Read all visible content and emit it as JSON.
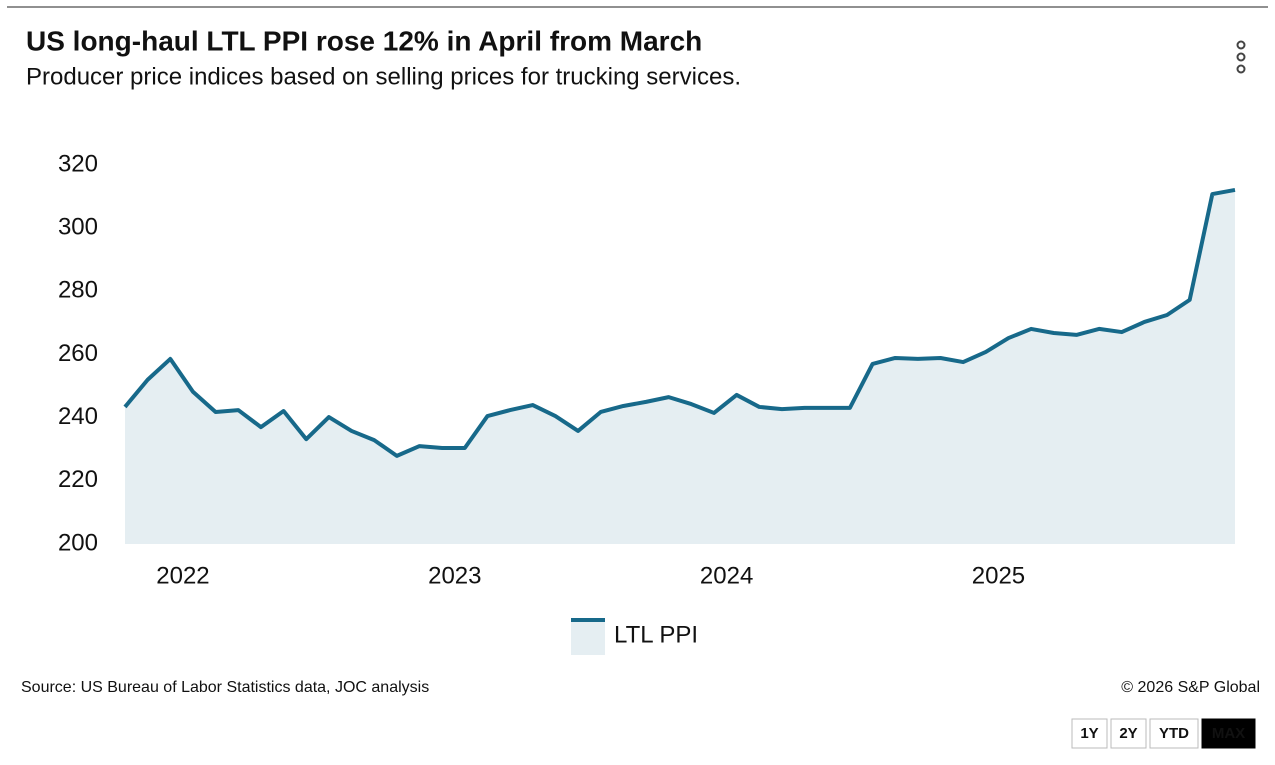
{
  "chart_data": {
    "type": "area",
    "title": "US long-haul LTL PPI rose 12% in April from March",
    "subtitle": "Producer price indices based on selling prices for trucking services.",
    "categories": [
      null,
      null,
      null,
      "2022",
      null,
      null,
      null,
      null,
      null,
      null,
      null,
      null,
      null,
      null,
      null,
      "2023",
      null,
      null,
      null,
      null,
      null,
      null,
      null,
      null,
      null,
      null,
      null,
      "2024",
      null,
      null,
      null,
      null,
      null,
      null,
      null,
      null,
      null,
      null,
      null,
      "2025",
      null,
      null,
      null,
      null,
      null,
      null,
      null,
      null,
      null,
      null
    ],
    "series": [
      {
        "name": "LTL PPI",
        "color": "#17698a",
        "fill": "#e5eef2",
        "values": [
          243.4,
          252,
          258.6,
          248.2,
          241.8,
          242.4,
          237,
          242.1,
          233.2,
          240.2,
          235.8,
          232.9,
          227.9,
          231,
          230.4,
          230.4,
          240.5,
          242.4,
          244,
          240.5,
          235.8,
          241.8,
          243.7,
          245,
          246.5,
          244.3,
          241.5,
          247.2,
          243.4,
          242.7,
          243.1,
          243.1,
          243.1,
          257,
          258.9,
          258.6,
          258.9,
          257.6,
          260.8,
          265.2,
          268.1,
          266.8,
          266.2,
          268.1,
          267.1,
          270.3,
          272.5,
          277.3,
          310.8,
          312.1
        ]
      }
    ],
    "ylim": [
      200,
      320
    ],
    "yticks": [
      200,
      220,
      240,
      260,
      280,
      300,
      320
    ],
    "grid": false,
    "source": "Source: US Bureau of Labor Statistics data, JOC analysis",
    "credit": "© 2026 S&P Global"
  },
  "controls": [
    "1Y",
    "2Y",
    "YTD",
    "MAX"
  ]
}
